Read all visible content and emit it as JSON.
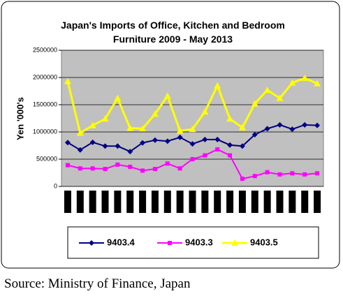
{
  "chart_data": {
    "type": "line",
    "title": "Japan's Imports of Office, Kitchen and Bedroom Furniture 2009 - May 2013",
    "y_label": "Yen '000's",
    "categories": [
      null,
      null,
      null,
      null,
      null,
      null,
      null,
      null,
      null,
      null,
      null,
      null,
      null,
      null,
      null,
      null,
      null,
      null,
      null,
      null,
      null
    ],
    "series": [
      {
        "name": "9403.4",
        "color": "#000080",
        "marker": "diamond",
        "values": [
          804000,
          670000,
          810000,
          740000,
          740000,
          640000,
          800000,
          850000,
          830000,
          900000,
          780000,
          860000,
          860000,
          760000,
          740000,
          950000,
          1060000,
          1130000,
          1050000,
          1130000,
          1120000
        ]
      },
      {
        "name": "9403.3",
        "color": "#ff00ff",
        "marker": "square",
        "values": [
          390000,
          330000,
          330000,
          320000,
          400000,
          360000,
          290000,
          320000,
          420000,
          330000,
          500000,
          570000,
          680000,
          570000,
          140000,
          190000,
          260000,
          220000,
          240000,
          220000,
          240000
        ]
      },
      {
        "name": "9403.5",
        "color": "#ffff00",
        "marker": "triangle",
        "values": [
          1930000,
          980000,
          1120000,
          1240000,
          1620000,
          1070000,
          1060000,
          1330000,
          1660000,
          1020000,
          1050000,
          1370000,
          1850000,
          1240000,
          1080000,
          1520000,
          1770000,
          1620000,
          1900000,
          1990000,
          1890000
        ]
      }
    ],
    "ylim": [
      0,
      2500000
    ],
    "yticks": [
      0,
      500000,
      1000000,
      1500000,
      2000000,
      2500000
    ],
    "grid": true,
    "legend": "bottom"
  },
  "source": "Source: Ministry of Finance, Japan"
}
